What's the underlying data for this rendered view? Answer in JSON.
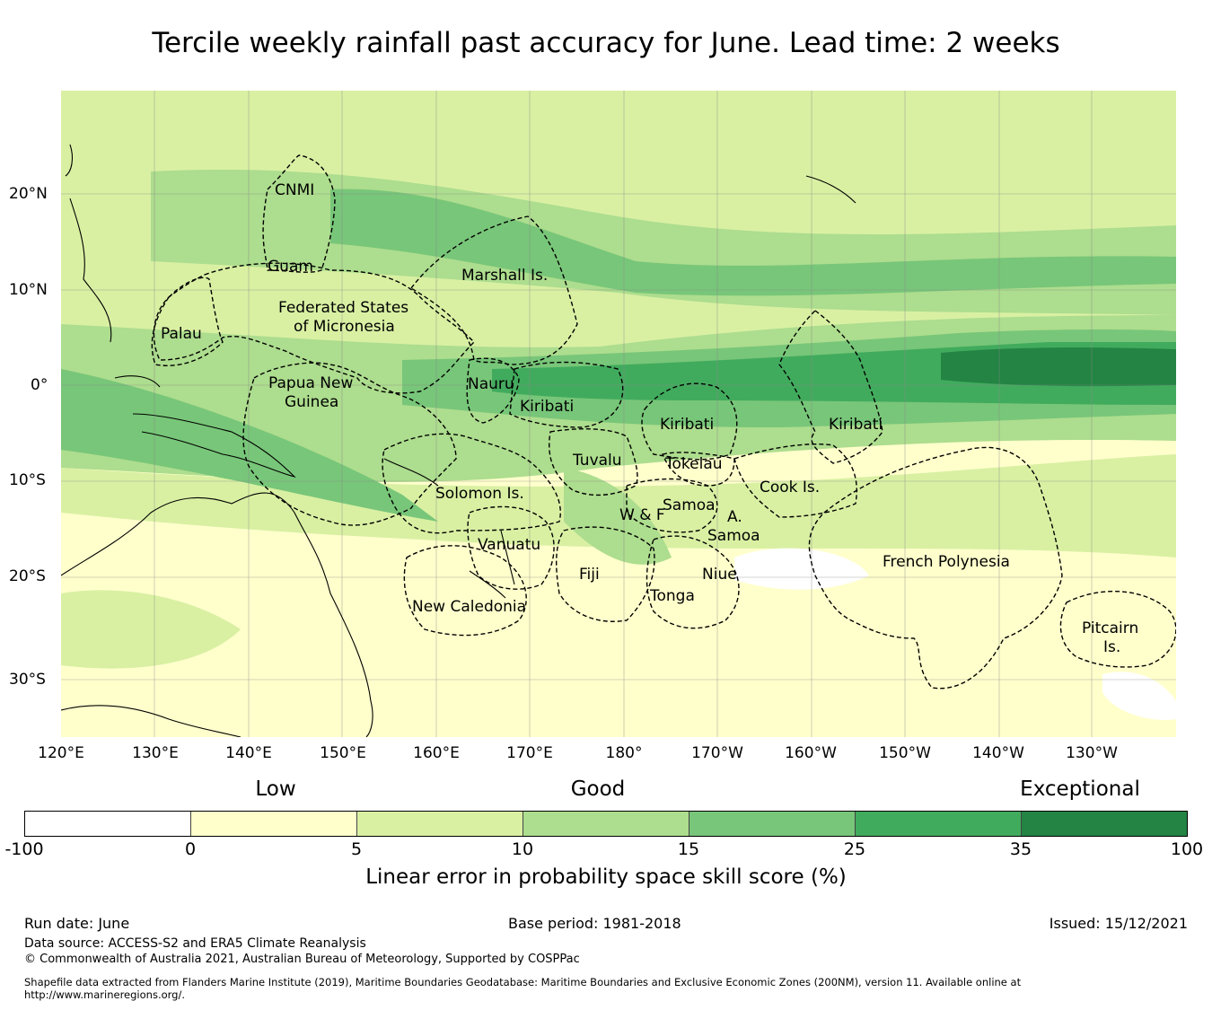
{
  "title": "Tercile weekly rainfall past accuracy for June. Lead time: 2 weeks",
  "map": {
    "lon_labels": [
      "120°E",
      "130°E",
      "140°E",
      "150°E",
      "160°E",
      "170°E",
      "180°",
      "170°W",
      "160°W",
      "150°W",
      "140°W",
      "130°W"
    ],
    "lat_labels": [
      "20°N",
      "10°N",
      "0°",
      "10°S",
      "20°S",
      "30°S"
    ],
    "regions": [
      {
        "name": "cnmi",
        "label": "CNMI"
      },
      {
        "name": "guam",
        "label": "Guam"
      },
      {
        "name": "marshall",
        "label": "Marshall Is."
      },
      {
        "name": "fsm-1",
        "label": "Federated States"
      },
      {
        "name": "fsm-2",
        "label": "of Micronesia"
      },
      {
        "name": "palau",
        "label": "Palau"
      },
      {
        "name": "png-1",
        "label": "Papua New"
      },
      {
        "name": "png-2",
        "label": "Guinea"
      },
      {
        "name": "nauru",
        "label": "Nauru"
      },
      {
        "name": "kiribati-w",
        "label": "Kiribati"
      },
      {
        "name": "kiribati-c",
        "label": "Kiribati"
      },
      {
        "name": "kiribati-e",
        "label": "Kiribati"
      },
      {
        "name": "tuvalu",
        "label": "Tuvalu"
      },
      {
        "name": "tokelau",
        "label": "Tokelau"
      },
      {
        "name": "cook",
        "label": "Cook Is."
      },
      {
        "name": "solomon",
        "label": "Solomon Is."
      },
      {
        "name": "samoa",
        "label": "Samoa"
      },
      {
        "name": "wf",
        "label": "W & F"
      },
      {
        "name": "asamoa-1",
        "label": "A."
      },
      {
        "name": "asamoa-2",
        "label": "Samoa"
      },
      {
        "name": "vanuatu",
        "label": "Vanuatu"
      },
      {
        "name": "fiji",
        "label": "Fiji"
      },
      {
        "name": "niue",
        "label": "Niue"
      },
      {
        "name": "tonga",
        "label": "Tonga"
      },
      {
        "name": "french-polynesia",
        "label": "French Polynesia"
      },
      {
        "name": "new-caledonia",
        "label": "New Caledonia"
      },
      {
        "name": "pitcairn-1",
        "label": "Pitcairn"
      },
      {
        "name": "pitcairn-2",
        "label": "Is."
      }
    ]
  },
  "legend": {
    "categories": [
      "Low",
      "Good",
      "Exceptional"
    ],
    "ticks": [
      "-100",
      "0",
      "5",
      "10",
      "15",
      "25",
      "35",
      "100"
    ],
    "colors": [
      "#ffffff",
      "#ffffcc",
      "#d9f0a3",
      "#addd8e",
      "#78c679",
      "#41ab5d",
      "#238443"
    ],
    "axis_title": "Linear error in probability space skill score (%)"
  },
  "footer": {
    "run_date": "Run date: June",
    "base_period": "Base period: 1981-2018",
    "issued": "Issued: 15/12/2021",
    "data_source": "Data source: ACCESS-S2 and ERA5 Climate Reanalysis",
    "copyright": "© Commonwealth of Australia 2021, Australian Bureau of Meteorology, Supported by COSPPac",
    "shapefile_note": "Shapefile data extracted from Flanders Marine Institute (2019), Maritime Boundaries Geodatabase: Maritime Boundaries and Exclusive Economic Zones (200NM), version 11. Available online at http://www.marineregions.org/."
  }
}
